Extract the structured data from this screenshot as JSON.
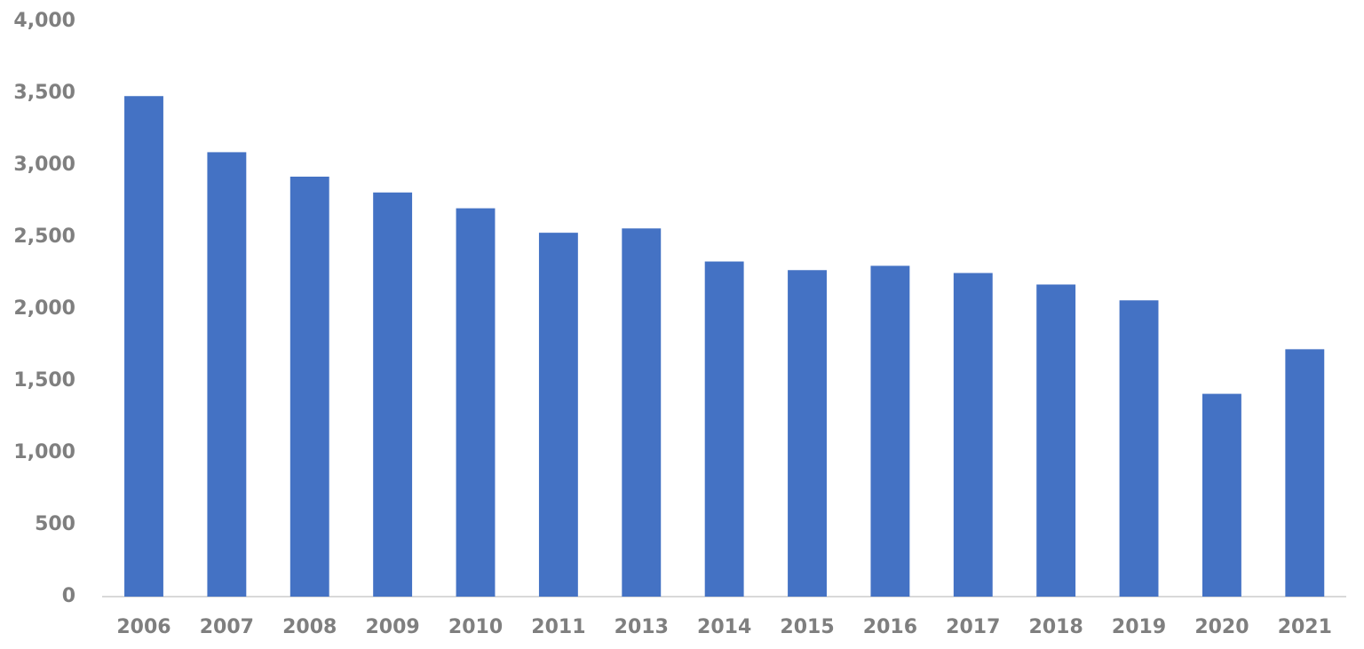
{
  "chart_data": {
    "type": "bar",
    "categories": [
      "2006",
      "2007",
      "2008",
      "2009",
      "2010",
      "2011",
      "2013",
      "2014",
      "2015",
      "2016",
      "2017",
      "2018",
      "2019",
      "2020",
      "2021"
    ],
    "values": [
      3480,
      3090,
      2920,
      2810,
      2700,
      2530,
      2560,
      2330,
      2270,
      2300,
      2250,
      2170,
      2060,
      1410,
      1720
    ],
    "color": "#4472c4",
    "ylim": [
      0,
      4000
    ],
    "yticks": [
      0,
      500,
      {
        "value": 1000,
        "label": "1,000"
      },
      {
        "value": 1500,
        "label": "1,500"
      },
      {
        "value": 2000,
        "label": "2,000"
      },
      {
        "value": 2500,
        "label": "2,500"
      },
      {
        "value": 3000,
        "label": "3,000"
      },
      {
        "value": 3500,
        "label": "3,500"
      },
      {
        "value": 4000,
        "label": "4,000"
      }
    ],
    "grid": false
  }
}
